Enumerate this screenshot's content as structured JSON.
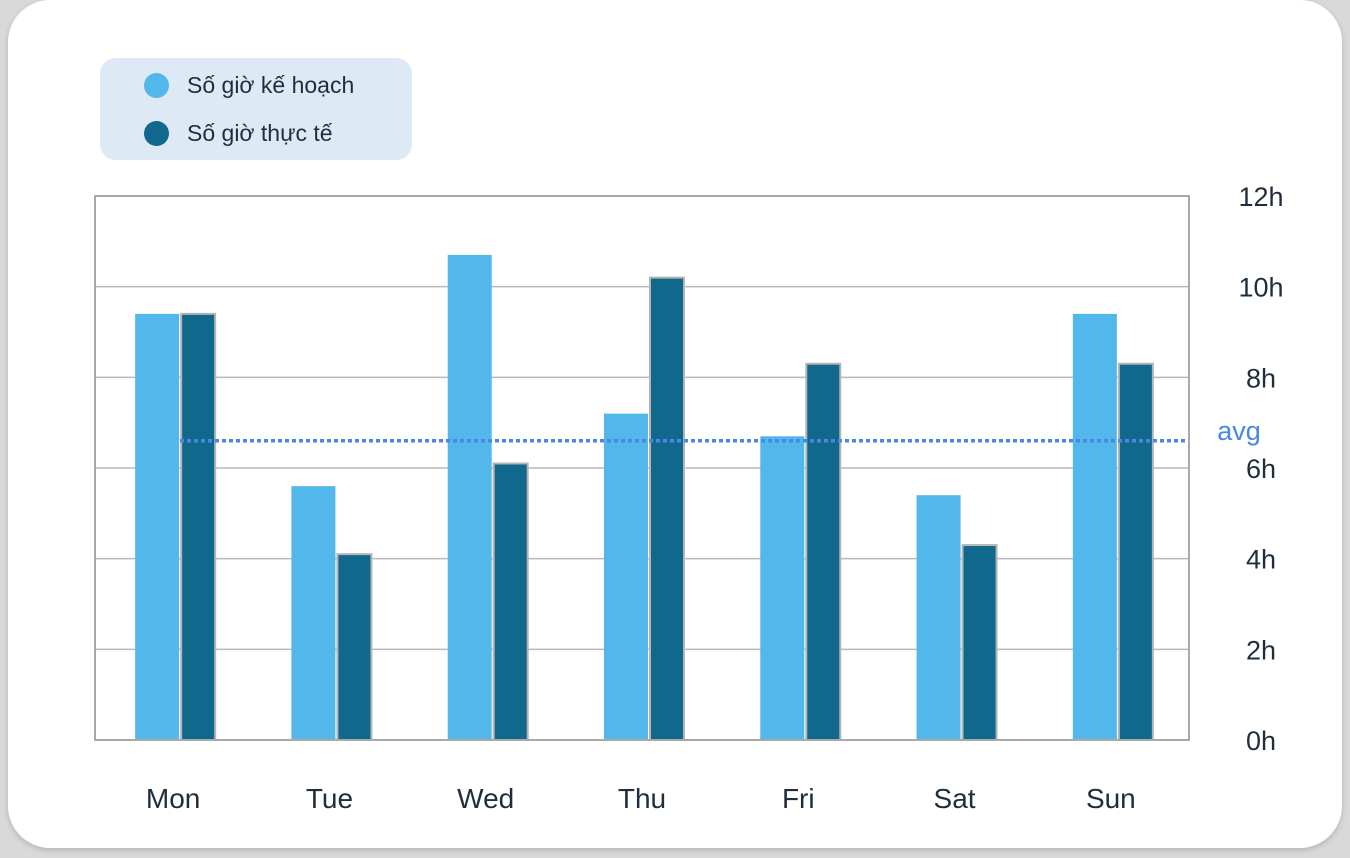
{
  "chart_data": {
    "type": "bar",
    "categories": [
      "Mon",
      "Tue",
      "Wed",
      "Thu",
      "Fri",
      "Sat",
      "Sun"
    ],
    "series": [
      {
        "name": "Số giờ kế hoạch",
        "color": "#52b7ea",
        "values": [
          9.4,
          5.6,
          10.7,
          7.2,
          6.7,
          5.4,
          9.4
        ]
      },
      {
        "name": "Số giờ thực tế",
        "color": "#10688c",
        "values": [
          9.4,
          4.1,
          6.1,
          10.2,
          8.3,
          4.3,
          8.3
        ]
      }
    ],
    "yticks": [
      "0h",
      "2h",
      "4h",
      "6h",
      "8h",
      "10h",
      "12h"
    ],
    "ylim": [
      0,
      12
    ],
    "avg": {
      "label": "avg",
      "value": 6.6,
      "color": "#4a86e8"
    },
    "grid": true,
    "legend_position": "top-left",
    "y_axis_side": "right"
  }
}
